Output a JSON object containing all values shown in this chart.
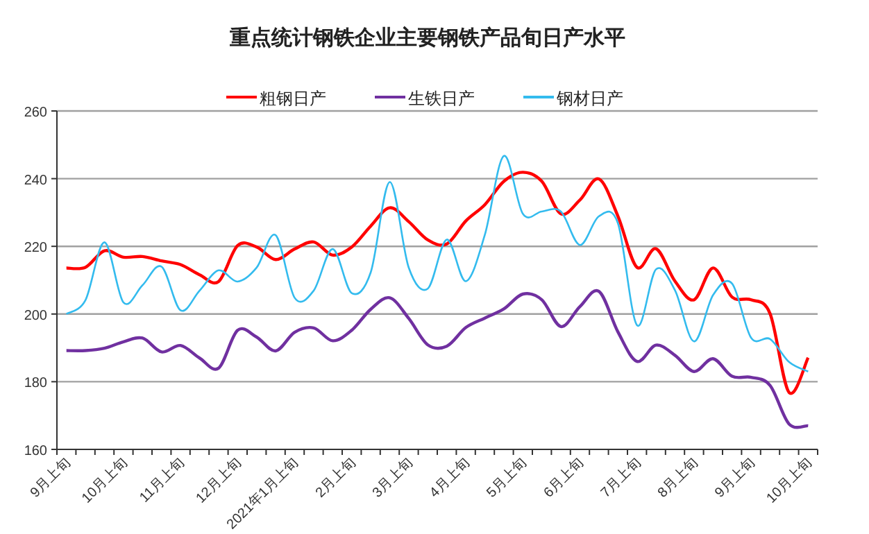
{
  "chart_data": {
    "type": "line",
    "title": "重点统计钢铁企业主要钢铁产品旬日产水平",
    "categories": [
      "9月上旬",
      null,
      null,
      "10月上旬",
      null,
      null,
      "11月上旬",
      null,
      null,
      "12月上旬",
      null,
      null,
      "2021年1月上旬",
      null,
      null,
      "2月上旬",
      null,
      null,
      "3月上旬",
      null,
      null,
      "4月上旬",
      null,
      null,
      "5月上旬",
      null,
      null,
      "6月上旬",
      null,
      null,
      "7月上旬",
      null,
      null,
      "8月上旬",
      null,
      null,
      "9月上旬",
      null,
      null,
      "10月上旬"
    ],
    "series": [
      {
        "name": "粗钢日产",
        "color": "#ff0000",
        "values": [
          213.6,
          213.8,
          218.7,
          216.8,
          217,
          215.7,
          214.6,
          211.6,
          209.6,
          220.2,
          219.8,
          216.1,
          219.2,
          221.3,
          217.4,
          219.8,
          226,
          231.4,
          227.3,
          221.9,
          220.7,
          227.5,
          232.3,
          239.2,
          241.9,
          239.2,
          229.6,
          233.7,
          239.9,
          228.9,
          213.8,
          219.3,
          209.7,
          204.2,
          213.6,
          205,
          204.2,
          200.1,
          176.8,
          187.1
        ]
      },
      {
        "name": "生铁日产",
        "color": "#7030a0",
        "values": [
          189.2,
          189.2,
          189.9,
          191.8,
          192.9,
          188.8,
          190.7,
          187,
          184,
          195.2,
          193.2,
          189.1,
          194.6,
          195.9,
          192.1,
          195.2,
          201.4,
          204.8,
          198.7,
          190.9,
          190.5,
          196,
          198.8,
          201.5,
          205.9,
          204.2,
          196.3,
          202.2,
          206.7,
          194.7,
          186,
          190.8,
          187.8,
          183,
          186.8,
          181.6,
          181.3,
          178.9,
          167.5,
          167
        ]
      },
      {
        "name": "钢材日产",
        "color": "#33bbee",
        "values": [
          200,
          204.1,
          221.2,
          203.4,
          208.5,
          214,
          201.1,
          206.9,
          212.9,
          209.6,
          213.7,
          223.3,
          204.8,
          206.9,
          219.2,
          206.2,
          212.3,
          239,
          213.7,
          207.5,
          222,
          209.7,
          223.4,
          246.7,
          229.6,
          230.3,
          230.3,
          220.4,
          228.9,
          226.8,
          196.7,
          213.2,
          207,
          191.9,
          205.6,
          209,
          193,
          192.6,
          185.8,
          183
        ]
      }
    ],
    "ylim": [
      160,
      260
    ],
    "yticks": [
      160,
      180,
      200,
      220,
      240,
      260
    ],
    "grid": "y",
    "legend": "top",
    "marker": "none",
    "line_style": "solid"
  }
}
